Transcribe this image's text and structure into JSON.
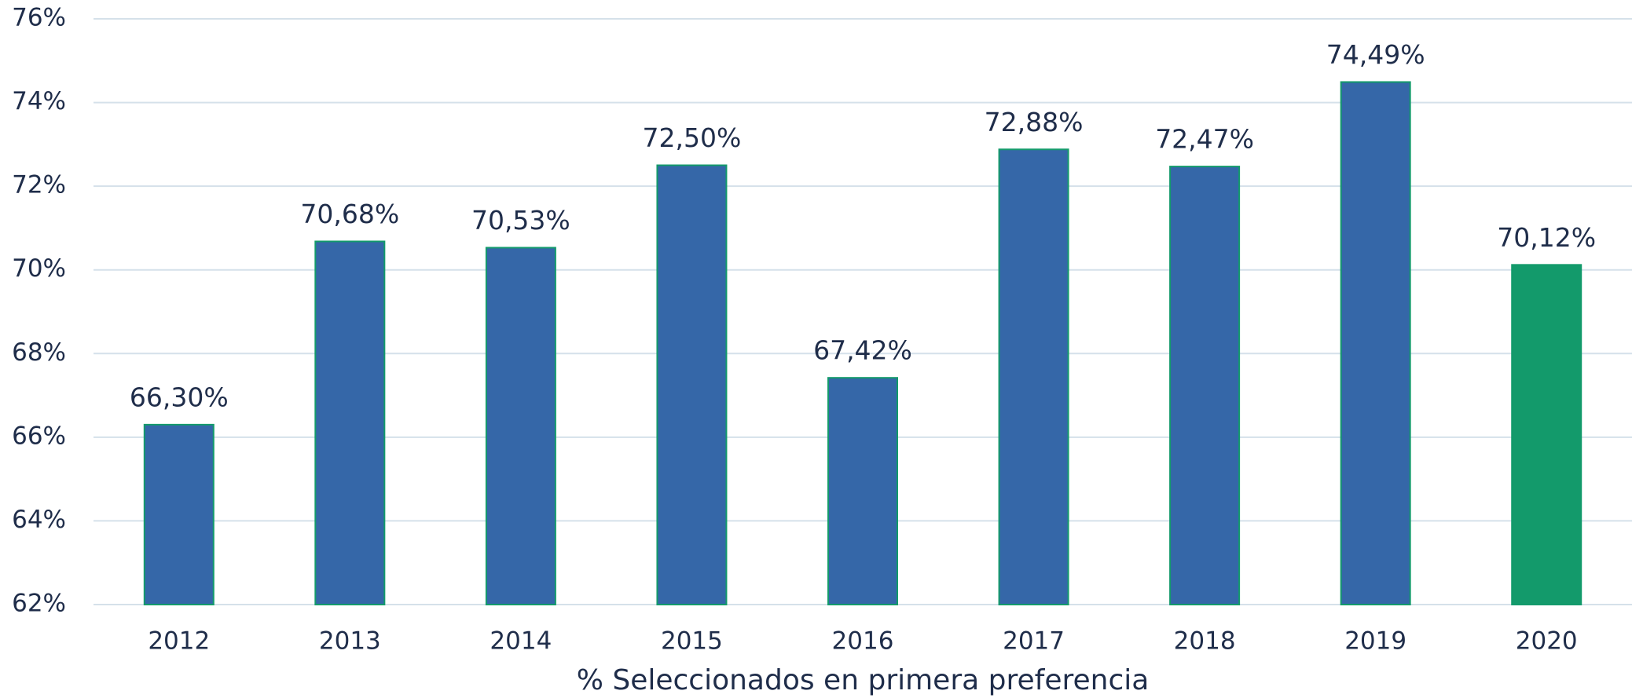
{
  "chart_data": {
    "type": "bar",
    "x_label": "% Seleccionados en primera preferencia",
    "categories": [
      "2012",
      "2013",
      "2014",
      "2015",
      "2016",
      "2017",
      "2018",
      "2019",
      "2020"
    ],
    "values": [
      66.3,
      70.68,
      70.53,
      72.5,
      67.42,
      72.88,
      72.47,
      74.49,
      70.12
    ],
    "value_labels": [
      "66,30%",
      "70,68%",
      "70,53%",
      "72,50%",
      "67,42%",
      "72,88%",
      "72,47%",
      "74,49%",
      "70,12%"
    ],
    "colors": [
      "#3567a8",
      "#3567a8",
      "#3567a8",
      "#3567a8",
      "#3567a8",
      "#3567a8",
      "#3567a8",
      "#3567a8",
      "#139a6b"
    ],
    "edgecolor": "#139a6b",
    "ylim": [
      62,
      76
    ],
    "yticks": [
      {
        "value": 62,
        "label": "62%"
      },
      {
        "value": 64,
        "label": "64%"
      },
      {
        "value": 66,
        "label": "66%"
      },
      {
        "value": 68,
        "label": "68%"
      },
      {
        "value": 70,
        "label": "70%"
      },
      {
        "value": 72,
        "label": "72%"
      },
      {
        "value": 74,
        "label": "74%"
      },
      {
        "value": 76,
        "label": "76%"
      }
    ],
    "grid": true
  }
}
